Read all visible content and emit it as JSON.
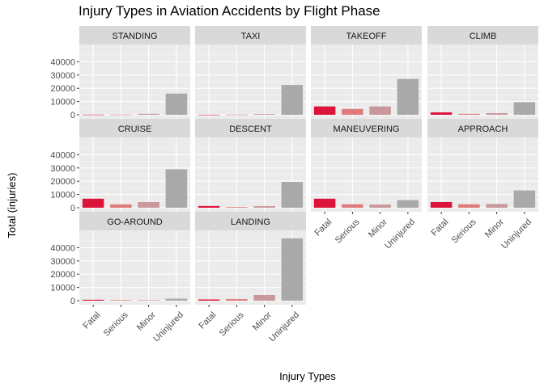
{
  "chart_data": {
    "type": "bar",
    "title": "Injury Types in Aviation Accidents by Flight Phase",
    "xlabel": "Injury Types",
    "ylabel": "Total (injuries)",
    "categories": [
      "Fatal",
      "Serious",
      "Minor",
      "Uninjured"
    ],
    "category_colors": [
      "#dc143c",
      "#e07b7b",
      "#c9989b",
      "#a9a9a9"
    ],
    "ylim": [
      0,
      50000
    ],
    "yticks": [
      0,
      10000,
      20000,
      30000,
      40000
    ],
    "ytick_labels": [
      "0",
      "10000",
      "20000",
      "30000",
      "40000"
    ],
    "grid": true,
    "facets": [
      {
        "name": "STANDING",
        "values": [
          100,
          150,
          700,
          16000
        ]
      },
      {
        "name": "TAXI",
        "values": [
          50,
          150,
          500,
          22500
        ]
      },
      {
        "name": "TAKEOFF",
        "values": [
          6300,
          4400,
          6300,
          27000
        ]
      },
      {
        "name": "CLIMB",
        "values": [
          1800,
          700,
          1200,
          9500
        ]
      },
      {
        "name": "CRUISE",
        "values": [
          6800,
          2500,
          4300,
          29000
        ]
      },
      {
        "name": "DESCENT",
        "values": [
          1300,
          500,
          1200,
          19500
        ]
      },
      {
        "name": "MANEUVERING",
        "values": [
          6800,
          2600,
          2400,
          5700
        ]
      },
      {
        "name": "APPROACH",
        "values": [
          4300,
          2600,
          2800,
          13000
        ]
      },
      {
        "name": "GO-AROUND",
        "values": [
          700,
          400,
          400,
          1500
        ]
      },
      {
        "name": "LANDING",
        "values": [
          900,
          1200,
          4300,
          47000
        ]
      }
    ]
  }
}
